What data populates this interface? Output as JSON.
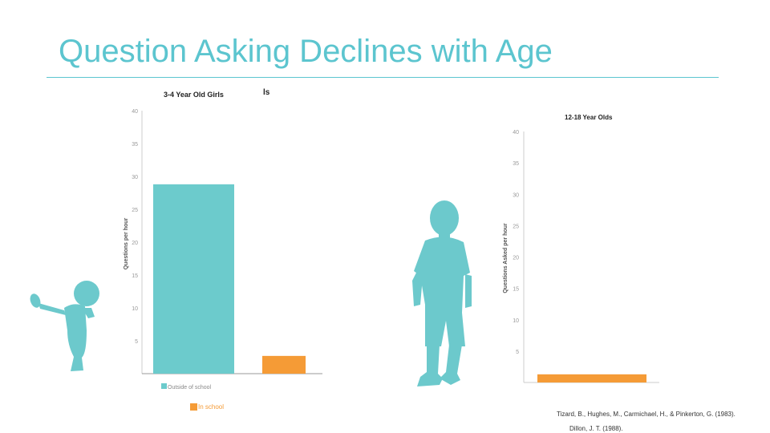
{
  "slide": {
    "title": "Question Asking Declines with Age",
    "citations": [
      "Tizard, B., Hughes, M., Carmichael, H., & Pinkerton, G. (1983).",
      "Dillon, J. T. (1988)."
    ]
  },
  "colors": {
    "accent": "#5cc5cf",
    "teal_bar": "#6ccbcc",
    "orange_bar": "#f59b36",
    "silhouette": "#6cc9cc"
  },
  "icons": [
    "toddler-silhouette-icon",
    "boy-silhouette-icon"
  ],
  "chart_data": [
    {
      "type": "bar",
      "title": "3-4 Year Old Girls",
      "title_fragment": "ls",
      "ylabel": "Questions per hour",
      "ylim": [
        0,
        40
      ],
      "yticks": [
        5,
        10,
        15,
        20,
        25,
        30,
        35,
        40
      ],
      "categories": [
        "Outside of school",
        "In school"
      ],
      "values": [
        28.8,
        2.7
      ],
      "colors": [
        "#6ccbcc",
        "#f59b36"
      ],
      "legend": [
        "Outside of school",
        "In school"
      ],
      "legend_position": "bottom"
    },
    {
      "type": "bar",
      "title": "12-18 Year Olds",
      "ylabel": "Questions Asked per hour",
      "ylim": [
        0,
        40
      ],
      "yticks": [
        5,
        10,
        15,
        20,
        25,
        30,
        35,
        40
      ],
      "categories": [
        "In school"
      ],
      "values": [
        1.3
      ],
      "colors": [
        "#f59b36"
      ]
    }
  ]
}
